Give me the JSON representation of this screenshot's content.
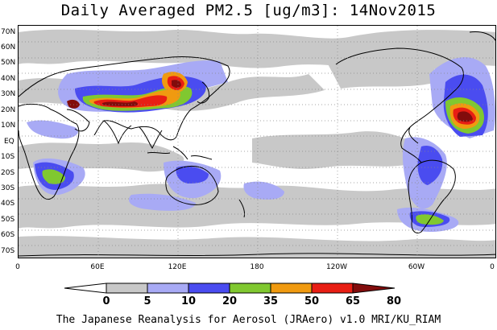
{
  "title": "Daily Averaged PM2.5 [ug/m3]: 14Nov2015",
  "footer": "The Japanese Reanalysis for Aerosol (JRAero) v1.0 MRI/KU_RIAM",
  "lat_labels": [
    "70N",
    "60N",
    "50N",
    "40N",
    "30N",
    "20N",
    "10N",
    "EQ",
    "10S",
    "20S",
    "30S",
    "40S",
    "50S",
    "60S",
    "70S"
  ],
  "lon_labels": [
    "0",
    "60E",
    "120E",
    "180",
    "120W",
    "60W",
    "0"
  ],
  "colorbar": {
    "levels": [
      "0",
      "5",
      "10",
      "20",
      "35",
      "50",
      "65",
      "80"
    ],
    "colors": [
      "#ffffff",
      "#c8c8c8",
      "#a8aaf5",
      "#4a4cf0",
      "#80c830",
      "#f09a10",
      "#e81e14",
      "#820c0c"
    ]
  }
}
